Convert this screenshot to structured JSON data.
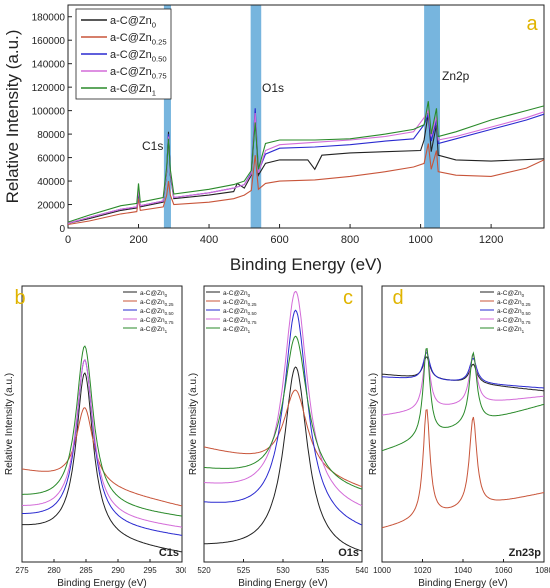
{
  "colors": {
    "black": "#222222",
    "red": "#c8553a",
    "blue": "#2a2ad0",
    "violet": "#d36bd8",
    "green": "#2a8a2a",
    "band": "#5fa8d8",
    "letter": "#e0b400"
  },
  "chart_data": [
    {
      "id": "a",
      "type": "line",
      "letter": "a",
      "xlabel": "Binding Energy (eV)",
      "ylabel": "Relative Intensity (a.u.)",
      "xlim": [
        0,
        1350
      ],
      "ylim": [
        0,
        190000
      ],
      "xticks": [
        0,
        200,
        400,
        600,
        800,
        1000,
        1200
      ],
      "yticks": [
        0,
        20000,
        40000,
        60000,
        80000,
        100000,
        120000,
        140000,
        160000,
        180000
      ],
      "legend_position": "top-left",
      "legend": [
        {
          "base": "a-C@Zn",
          "sub": "0"
        },
        {
          "base": "a-C@Zn",
          "sub": "0.25"
        },
        {
          "base": "a-C@Zn",
          "sub": "0.50"
        },
        {
          "base": "a-C@Zn",
          "sub": "0.75"
        },
        {
          "base": "a-C@Zn",
          "sub": "1"
        }
      ],
      "annotations": [
        "C1s",
        "O1s",
        "Zn2p"
      ],
      "highlight_bands": [
        [
          272,
          292
        ],
        [
          518,
          548
        ],
        [
          1010,
          1055
        ]
      ],
      "series": [
        {
          "color": "black",
          "points": [
            [
              0,
              4000
            ],
            [
              60,
              8000
            ],
            [
              150,
              15000
            ],
            [
              195,
              17000
            ],
            [
              200,
              30000
            ],
            [
              205,
              18000
            ],
            [
              270,
              22000
            ],
            [
              280,
              48000
            ],
            [
              285,
              82000
            ],
            [
              290,
              45000
            ],
            [
              300,
              25000
            ],
            [
              400,
              28000
            ],
            [
              470,
              31000
            ],
            [
              480,
              38000
            ],
            [
              500,
              34000
            ],
            [
              520,
              45000
            ],
            [
              531,
              95000
            ],
            [
              540,
              45000
            ],
            [
              560,
              55000
            ],
            [
              600,
              58000
            ],
            [
              680,
              58000
            ],
            [
              700,
              50000
            ],
            [
              720,
              62000
            ],
            [
              800,
              64000
            ],
            [
              900,
              65000
            ],
            [
              1000,
              66000
            ],
            [
              1010,
              75000
            ],
            [
              1022,
              98000
            ],
            [
              1030,
              65000
            ],
            [
              1045,
              88000
            ],
            [
              1050,
              62000
            ],
            [
              1100,
              58000
            ],
            [
              1200,
              57000
            ],
            [
              1350,
              59000
            ]
          ]
        },
        {
          "color": "red",
          "points": [
            [
              0,
              3000
            ],
            [
              60,
              6000
            ],
            [
              150,
              12000
            ],
            [
              195,
              14000
            ],
            [
              200,
              25000
            ],
            [
              205,
              15000
            ],
            [
              270,
              18000
            ],
            [
              280,
              28000
            ],
            [
              285,
              40000
            ],
            [
              290,
              28000
            ],
            [
              300,
              20000
            ],
            [
              400,
              22000
            ],
            [
              470,
              25000
            ],
            [
              500,
              28000
            ],
            [
              520,
              32000
            ],
            [
              531,
              62000
            ],
            [
              540,
              33000
            ],
            [
              560,
              38000
            ],
            [
              600,
              40000
            ],
            [
              700,
              41000
            ],
            [
              800,
              44000
            ],
            [
              900,
              48000
            ],
            [
              980,
              52000
            ],
            [
              1010,
              55000
            ],
            [
              1022,
              72000
            ],
            [
              1030,
              50000
            ],
            [
              1045,
              66000
            ],
            [
              1050,
              48000
            ],
            [
              1100,
              45000
            ],
            [
              1200,
              44000
            ],
            [
              1300,
              51000
            ],
            [
              1350,
              58000
            ]
          ]
        },
        {
          "color": "blue",
          "points": [
            [
              0,
              4000
            ],
            [
              60,
              9000
            ],
            [
              150,
              16000
            ],
            [
              195,
              18000
            ],
            [
              200,
              33000
            ],
            [
              205,
              19000
            ],
            [
              270,
              23000
            ],
            [
              280,
              50000
            ],
            [
              285,
              80000
            ],
            [
              290,
              48000
            ],
            [
              300,
              26000
            ],
            [
              400,
              30000
            ],
            [
              470,
              34000
            ],
            [
              500,
              37000
            ],
            [
              520,
              47000
            ],
            [
              531,
              102000
            ],
            [
              540,
              48000
            ],
            [
              560,
              63000
            ],
            [
              600,
              68000
            ],
            [
              700,
              69000
            ],
            [
              800,
              71000
            ],
            [
              900,
              74000
            ],
            [
              980,
              76000
            ],
            [
              1010,
              88000
            ],
            [
              1022,
              97000
            ],
            [
              1030,
              74000
            ],
            [
              1045,
              92000
            ],
            [
              1050,
              72000
            ],
            [
              1100,
              76000
            ],
            [
              1200,
              84000
            ],
            [
              1300,
              92000
            ],
            [
              1350,
              97000
            ]
          ]
        },
        {
          "color": "violet",
          "points": [
            [
              0,
              4000
            ],
            [
              60,
              9000
            ],
            [
              150,
              16000
            ],
            [
              195,
              18000
            ],
            [
              200,
              33000
            ],
            [
              205,
              19000
            ],
            [
              270,
              23000
            ],
            [
              280,
              49000
            ],
            [
              285,
              78000
            ],
            [
              290,
              47000
            ],
            [
              300,
              26000
            ],
            [
              400,
              30000
            ],
            [
              470,
              34000
            ],
            [
              500,
              37000
            ],
            [
              520,
              46000
            ],
            [
              531,
              98000
            ],
            [
              540,
              47000
            ],
            [
              560,
              66000
            ],
            [
              600,
              71000
            ],
            [
              700,
              73000
            ],
            [
              800,
              75000
            ],
            [
              900,
              78000
            ],
            [
              980,
              82000
            ],
            [
              1010,
              94000
            ],
            [
              1022,
              100000
            ],
            [
              1030,
              78000
            ],
            [
              1045,
              95000
            ],
            [
              1050,
              75000
            ],
            [
              1100,
              78000
            ],
            [
              1200,
              86000
            ],
            [
              1300,
              94000
            ],
            [
              1350,
              99000
            ]
          ]
        },
        {
          "color": "green",
          "points": [
            [
              0,
              5000
            ],
            [
              60,
              11000
            ],
            [
              150,
              19000
            ],
            [
              195,
              21000
            ],
            [
              200,
              38000
            ],
            [
              205,
              22000
            ],
            [
              270,
              26000
            ],
            [
              280,
              52000
            ],
            [
              285,
              76000
            ],
            [
              290,
              50000
            ],
            [
              300,
              29000
            ],
            [
              400,
              33000
            ],
            [
              470,
              37000
            ],
            [
              500,
              40000
            ],
            [
              520,
              49000
            ],
            [
              531,
              90000
            ],
            [
              540,
              50000
            ],
            [
              560,
              72000
            ],
            [
              600,
              75000
            ],
            [
              700,
              75000
            ],
            [
              800,
              76000
            ],
            [
              900,
              80000
            ],
            [
              980,
              84000
            ],
            [
              1010,
              88000
            ],
            [
              1022,
              108000
            ],
            [
              1030,
              80000
            ],
            [
              1045,
              102000
            ],
            [
              1050,
              78000
            ],
            [
              1100,
              82000
            ],
            [
              1200,
              92000
            ],
            [
              1300,
              100000
            ],
            [
              1350,
              104000
            ]
          ]
        }
      ]
    },
    {
      "id": "b",
      "type": "line",
      "letter": "b",
      "region_label": "C1s",
      "xlabel": "Binding Energy (eV)",
      "ylabel": "Relative Intensity (a.u.)",
      "xlim": [
        275,
        300
      ],
      "xticks": [
        275,
        280,
        285,
        290,
        295,
        300
      ],
      "legend_position": "top-right",
      "legend": [
        {
          "base": "a-C@Zn",
          "sub": "0"
        },
        {
          "base": "a-C@Zn",
          "sub": "0.25"
        },
        {
          "base": "a-C@Zn",
          "sub": "0.50"
        },
        {
          "base": "a-C@Zn",
          "sub": "0.75"
        },
        {
          "base": "a-C@Zn",
          "sub": "1"
        }
      ],
      "series": [
        {
          "color": "black",
          "center": 284.8,
          "width": 1.6,
          "amp": 0.6,
          "base_left": 0.12,
          "base_right": 0.03
        },
        {
          "color": "red",
          "center": 284.8,
          "width": 1.6,
          "amp": 0.28,
          "base_left": 0.33,
          "base_right": 0.2
        },
        {
          "color": "blue",
          "center": 284.8,
          "width": 1.6,
          "amp": 0.6,
          "base_left": 0.16,
          "base_right": 0.09
        },
        {
          "color": "violet",
          "center": 284.8,
          "width": 1.6,
          "amp": 0.57,
          "base_left": 0.19,
          "base_right": 0.12
        },
        {
          "color": "green",
          "center": 284.8,
          "width": 1.6,
          "amp": 0.58,
          "base_left": 0.23,
          "base_right": 0.16
        }
      ]
    },
    {
      "id": "c",
      "type": "line",
      "letter": "c",
      "region_label": "O1s",
      "xlabel": "Binding Energy (eV)",
      "ylabel": "Relative Intensity (a.u.)",
      "xlim": [
        520,
        540
      ],
      "xticks": [
        520,
        525,
        530,
        535,
        540
      ],
      "legend_position": "top-left",
      "legend": [
        {
          "base": "a-C@Zn",
          "sub": "0"
        },
        {
          "base": "a-C@Zn",
          "sub": "0.25"
        },
        {
          "base": "a-C@Zn",
          "sub": "0.50"
        },
        {
          "base": "a-C@Zn",
          "sub": "0.75"
        },
        {
          "base": "a-C@Zn",
          "sub": "1"
        }
      ],
      "series": [
        {
          "color": "black",
          "center": 531.6,
          "width": 1.8,
          "amp": 0.68,
          "base_left": 0.05,
          "base_right": 0.01
        },
        {
          "color": "red",
          "center": 531.6,
          "width": 1.8,
          "amp": 0.3,
          "base_left": 0.41,
          "base_right": 0.26
        },
        {
          "color": "blue",
          "center": 531.6,
          "width": 1.8,
          "amp": 0.77,
          "base_left": 0.2,
          "base_right": 0.1
        },
        {
          "color": "violet",
          "center": 531.6,
          "width": 1.8,
          "amp": 0.77,
          "base_left": 0.27,
          "base_right": 0.17
        },
        {
          "color": "green",
          "center": 531.6,
          "width": 1.8,
          "amp": 0.54,
          "base_left": 0.33,
          "base_right": 0.24
        }
      ]
    },
    {
      "id": "d",
      "type": "line",
      "letter": "d",
      "region_label": "Zn23p",
      "xlabel": "Binding Energy (eV)",
      "ylabel": "Relative Intensity (a.u.)",
      "xlim": [
        1000,
        1080
      ],
      "xticks": [
        1000,
        1020,
        1040,
        1060,
        1080
      ],
      "legend_position": "top-right",
      "legend": [
        {
          "base": "a-C@Zn",
          "sub": "0"
        },
        {
          "base": "a-C@Zn",
          "sub": "0.25"
        },
        {
          "base": "a-C@Zn",
          "sub": "0.50"
        },
        {
          "base": "a-C@Zn",
          "sub": "0.75"
        },
        {
          "base": "a-C@Zn",
          "sub": "1"
        }
      ],
      "series": [
        {
          "color": "black",
          "peaks": [
            [
              1022,
              0.08,
              2.0
            ],
            [
              1045,
              0.07,
              2.2
            ]
          ],
          "base_left": 0.68,
          "base_right": 0.62
        },
        {
          "color": "red",
          "peaks": [
            [
              1022,
              0.4,
              2.0
            ],
            [
              1045,
              0.33,
              2.2
            ]
          ],
          "base_left": 0.12,
          "base_right": 0.25
        },
        {
          "color": "blue",
          "peaks": [
            [
              1022,
              0.1,
              2.0
            ],
            [
              1045,
              0.09,
              2.2
            ]
          ],
          "base_left": 0.67,
          "base_right": 0.63
        },
        {
          "color": "violet",
          "peaks": [
            [
              1022,
              0.22,
              2.0
            ],
            [
              1045,
              0.18,
              2.2
            ]
          ],
          "base_left": 0.53,
          "base_right": 0.6
        },
        {
          "color": "green",
          "peaks": [
            [
              1022,
              0.33,
              2.0
            ],
            [
              1045,
              0.26,
              2.2
            ]
          ],
          "base_left": 0.4,
          "base_right": 0.57
        }
      ]
    }
  ]
}
